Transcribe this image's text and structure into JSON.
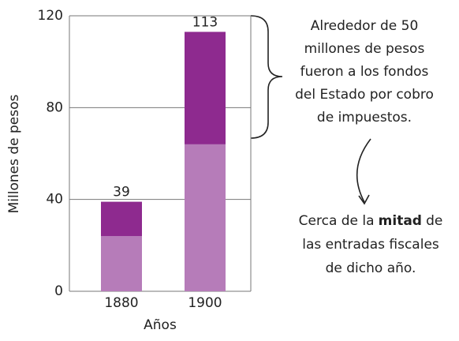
{
  "chart_data": {
    "type": "stacked_bar",
    "ylabel": "Millones de pesos",
    "xlabel": "Años",
    "categories": [
      "1880",
      "1900"
    ],
    "series": [
      {
        "color": "#b67cb9",
        "values": [
          24,
          64
        ]
      },
      {
        "color": "#8e2a8f",
        "values": [
          15,
          49
        ]
      }
    ],
    "totals": [
      39,
      113
    ],
    "ylim": [
      0,
      120
    ],
    "yticks": [
      0,
      40,
      80,
      120
    ],
    "grid": true,
    "annotations": [
      {
        "lines": [
          "Alrededor de 50",
          "millones de pesos",
          "fueron a los fondos",
          "del Estado por cobro",
          "de impuestos."
        ]
      },
      {
        "lines": [
          [
            "Cerca de la",
            "mitad",
            "de"
          ],
          "las entradas fiscales",
          "de dicho año."
        ]
      }
    ]
  }
}
